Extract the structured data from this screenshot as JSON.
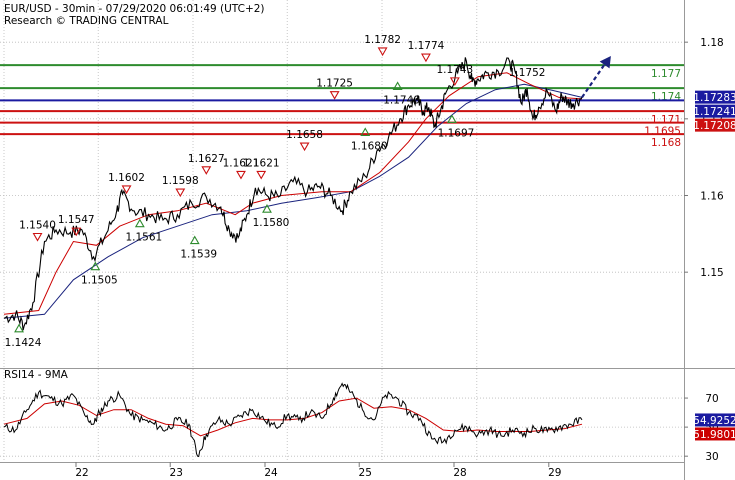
{
  "header": {
    "line1": "EUR/USD - 30min - 07/29/2020 06:01:49 (UTC+2)",
    "line2": "Research © TRADING CENTRAL"
  },
  "colors": {
    "price": "#000000",
    "ma_fast": "#cc0000",
    "ma_slow": "#1a237e",
    "resistance_green": "#2e8b2e",
    "pivot_blue": "#1a1aa0",
    "support_red": "#cc1111",
    "arrow": "#1a237e",
    "rsi": "#000000",
    "rsi_ma": "#cc0000"
  },
  "chart_data": [
    {
      "type": "line",
      "title": "EUR/USD - 30min - 07/29/2020 06:01:49 (UTC+2)",
      "ylim": [
        1.1375,
        1.1855
      ],
      "y_ticks": [
        "1.18",
        "1.17",
        "1.16",
        "1.15"
      ],
      "y_tick_values": [
        1.18,
        1.17,
        1.16,
        1.15
      ],
      "x_ticks": [
        "22",
        "23",
        "24",
        "25",
        "28",
        "29"
      ],
      "x_tick_positions": [
        0.0,
        0.163,
        0.327,
        0.49,
        0.654,
        0.818
      ],
      "x_end": 0.87,
      "grid": true,
      "price_path": [
        [
          0.0,
          1.144
        ],
        [
          0.02,
          1.1445
        ],
        [
          0.035,
          1.143
        ],
        [
          0.05,
          1.146
        ],
        [
          0.07,
          1.154
        ],
        [
          0.09,
          1.1555
        ],
        [
          0.115,
          1.1552
        ],
        [
          0.135,
          1.1555
        ],
        [
          0.155,
          1.152
        ],
        [
          0.175,
          1.1547
        ],
        [
          0.195,
          1.158
        ],
        [
          0.205,
          1.1602
        ],
        [
          0.225,
          1.158
        ],
        [
          0.25,
          1.1575
        ],
        [
          0.275,
          1.1568
        ],
        [
          0.3,
          1.1575
        ],
        [
          0.325,
          1.159
        ],
        [
          0.35,
          1.1598
        ],
        [
          0.375,
          1.1585
        ],
        [
          0.39,
          1.1555
        ],
        [
          0.405,
          1.1545
        ],
        [
          0.42,
          1.1575
        ],
        [
          0.435,
          1.161
        ],
        [
          0.455,
          1.16
        ],
        [
          0.475,
          1.1598
        ],
        [
          0.5,
          1.1618
        ],
        [
          0.525,
          1.1605
        ],
        [
          0.545,
          1.1612
        ],
        [
          0.565,
          1.16
        ],
        [
          0.585,
          1.158
        ],
        [
          0.6,
          1.1605
        ],
        [
          0.625,
          1.1625
        ],
        [
          0.645,
          1.1658
        ],
        [
          0.665,
          1.1675
        ],
        [
          0.685,
          1.17
        ],
        [
          0.7,
          1.1718
        ],
        [
          0.715,
          1.1725
        ],
        [
          0.725,
          1.171
        ],
        [
          0.735,
          1.1715
        ],
        [
          0.745,
          1.169
        ],
        [
          0.755,
          1.171
        ],
        [
          0.765,
          1.1735
        ],
        [
          0.785,
          1.176
        ],
        [
          0.8,
          1.1775
        ],
        [
          0.81,
          1.1748
        ],
        [
          0.82,
          1.1752
        ],
        [
          0.835,
          1.176
        ],
        [
          0.855,
          1.1762
        ],
        [
          0.875,
          1.1774
        ],
        [
          0.885,
          1.176
        ],
        [
          0.895,
          1.172
        ],
        [
          0.905,
          1.174
        ],
        [
          0.915,
          1.17
        ],
        [
          0.925,
          1.1715
        ],
        [
          0.94,
          1.1736
        ],
        [
          0.955,
          1.171
        ],
        [
          0.965,
          1.173
        ],
        [
          0.975,
          1.1722
        ],
        [
          0.985,
          1.172
        ],
        [
          1.0,
          1.1728
        ]
      ],
      "ma_fast_path": [
        [
          0.0,
          1.1445
        ],
        [
          0.06,
          1.145
        ],
        [
          0.09,
          1.15
        ],
        [
          0.12,
          1.154
        ],
        [
          0.16,
          1.1535
        ],
        [
          0.2,
          1.156
        ],
        [
          0.25,
          1.1575
        ],
        [
          0.3,
          1.158
        ],
        [
          0.35,
          1.159
        ],
        [
          0.4,
          1.1575
        ],
        [
          0.43,
          1.159
        ],
        [
          0.48,
          1.16
        ],
        [
          0.55,
          1.1605
        ],
        [
          0.6,
          1.1605
        ],
        [
          0.65,
          1.163
        ],
        [
          0.7,
          1.167
        ],
        [
          0.73,
          1.17
        ],
        [
          0.77,
          1.173
        ],
        [
          0.82,
          1.1755
        ],
        [
          0.87,
          1.176
        ],
        [
          0.91,
          1.1745
        ],
        [
          0.96,
          1.1728
        ],
        [
          1.0,
          1.1726
        ]
      ],
      "ma_slow_path": [
        [
          0.0,
          1.144
        ],
        [
          0.07,
          1.1445
        ],
        [
          0.12,
          1.149
        ],
        [
          0.18,
          1.152
        ],
        [
          0.24,
          1.1545
        ],
        [
          0.3,
          1.156
        ],
        [
          0.36,
          1.1575
        ],
        [
          0.42,
          1.158
        ],
        [
          0.48,
          1.159
        ],
        [
          0.54,
          1.1597
        ],
        [
          0.6,
          1.1605
        ],
        [
          0.65,
          1.1625
        ],
        [
          0.7,
          1.165
        ],
        [
          0.75,
          1.169
        ],
        [
          0.8,
          1.172
        ],
        [
          0.85,
          1.1738
        ],
        [
          0.9,
          1.1745
        ],
        [
          0.95,
          1.1737
        ],
        [
          1.0,
          1.1728
        ]
      ],
      "forecast_arrow": {
        "from": [
          1.0,
          1.1728
        ],
        "to": [
          1.05,
          1.1782
        ]
      },
      "levels": [
        {
          "value": 1.177,
          "label": "1.177",
          "kind": "resistance"
        },
        {
          "value": 1.174,
          "label": "1.174",
          "kind": "resistance"
        },
        {
          "value": 1.171,
          "label": "1.171",
          "kind": "support"
        },
        {
          "value": 1.1695,
          "label": "1.1695",
          "kind": "support"
        },
        {
          "value": 1.168,
          "label": "1.168",
          "kind": "support"
        },
        {
          "value": 1.1724,
          "label": "",
          "kind": "pivot"
        }
      ],
      "price_labels": [
        {
          "value": 1.17283,
          "label": "1.17283",
          "kind": "pivot"
        },
        {
          "value": 1.17241,
          "label": "1.17241",
          "kind": "pivot"
        },
        {
          "value": 1.17208,
          "label": "1.17208",
          "kind": "support"
        }
      ],
      "annotations": [
        {
          "x": 0.026,
          "y": 1.1434,
          "label": "1.1424",
          "kind": "low"
        },
        {
          "x": 0.058,
          "y": 1.154,
          "label": "1.1540",
          "kind": "high"
        },
        {
          "x": 0.125,
          "y": 1.1547,
          "label": "1.1547",
          "kind": "high"
        },
        {
          "x": 0.158,
          "y": 1.1515,
          "label": "1.1505",
          "kind": "low"
        },
        {
          "x": 0.212,
          "y": 1.1602,
          "label": "1.1602",
          "kind": "high"
        },
        {
          "x": 0.235,
          "y": 1.1571,
          "label": "1.1561",
          "kind": "low"
        },
        {
          "x": 0.305,
          "y": 1.1598,
          "label": "1.1598",
          "kind": "high"
        },
        {
          "x": 0.33,
          "y": 1.1549,
          "label": "1.1539",
          "kind": "low"
        },
        {
          "x": 0.35,
          "y": 1.1627,
          "label": "1.1627",
          "kind": "high"
        },
        {
          "x": 0.41,
          "y": 1.1621,
          "label": "1.1621",
          "kind": "high"
        },
        {
          "x": 0.445,
          "y": 1.1621,
          "label": "1.1621",
          "kind": "high"
        },
        {
          "x": 0.455,
          "y": 1.159,
          "label": "1.1580",
          "kind": "low"
        },
        {
          "x": 0.52,
          "y": 1.1658,
          "label": "1.1658",
          "kind": "high"
        },
        {
          "x": 0.572,
          "y": 1.1725,
          "label": "1.1725",
          "kind": "high"
        },
        {
          "x": 0.625,
          "y": 1.169,
          "label": "1.1680",
          "kind": "low"
        },
        {
          "x": 0.655,
          "y": 1.1782,
          "label": "1.1782",
          "kind": "high"
        },
        {
          "x": 0.681,
          "y": 1.175,
          "label": "1.1740",
          "kind": "low"
        },
        {
          "x": 0.73,
          "y": 1.1774,
          "label": "1.1774",
          "kind": "high"
        },
        {
          "x": 0.775,
          "y": 1.1707,
          "label": "1.1697",
          "kind": "low"
        },
        {
          "x": 0.78,
          "y": 1.1743,
          "label": "1.1743",
          "kind": "high"
        },
        {
          "x": 0.905,
          "y": 1.1748,
          "label": "1.1752",
          "kind": "target"
        }
      ]
    },
    {
      "type": "line",
      "title": "RSI14 - 9MA",
      "ylim": [
        26,
        90
      ],
      "y_ticks": [
        "70",
        "50",
        "30"
      ],
      "y_tick_values": [
        70,
        50,
        30
      ],
      "grid": true,
      "rsi_path": [
        [
          0.0,
          50
        ],
        [
          0.02,
          48
        ],
        [
          0.04,
          62
        ],
        [
          0.06,
          74
        ],
        [
          0.08,
          70
        ],
        [
          0.1,
          66
        ],
        [
          0.12,
          72
        ],
        [
          0.14,
          58
        ],
        [
          0.155,
          52
        ],
        [
          0.165,
          60
        ],
        [
          0.18,
          68
        ],
        [
          0.2,
          72
        ],
        [
          0.22,
          58
        ],
        [
          0.24,
          55
        ],
        [
          0.26,
          52
        ],
        [
          0.28,
          48
        ],
        [
          0.3,
          55
        ],
        [
          0.32,
          52
        ],
        [
          0.335,
          30
        ],
        [
          0.35,
          45
        ],
        [
          0.37,
          55
        ],
        [
          0.39,
          52
        ],
        [
          0.41,
          58
        ],
        [
          0.43,
          62
        ],
        [
          0.45,
          55
        ],
        [
          0.47,
          50
        ],
        [
          0.49,
          58
        ],
        [
          0.51,
          55
        ],
        [
          0.53,
          60
        ],
        [
          0.55,
          56
        ],
        [
          0.57,
          70
        ],
        [
          0.585,
          80
        ],
        [
          0.6,
          74
        ],
        [
          0.62,
          62
        ],
        [
          0.64,
          55
        ],
        [
          0.66,
          72
        ],
        [
          0.68,
          70
        ],
        [
          0.7,
          60
        ],
        [
          0.72,
          56
        ],
        [
          0.74,
          42
        ],
        [
          0.76,
          40
        ],
        [
          0.78,
          48
        ],
        [
          0.8,
          50
        ],
        [
          0.82,
          45
        ],
        [
          0.84,
          48
        ],
        [
          0.86,
          44
        ],
        [
          0.88,
          48
        ],
        [
          0.9,
          46
        ],
        [
          0.92,
          49
        ],
        [
          0.94,
          47
        ],
        [
          0.96,
          50
        ],
        [
          0.98,
          52
        ],
        [
          1.0,
          55
        ]
      ],
      "rsi_ma_path": [
        [
          0.0,
          52
        ],
        [
          0.04,
          56
        ],
        [
          0.07,
          66
        ],
        [
          0.1,
          68
        ],
        [
          0.13,
          65
        ],
        [
          0.16,
          58
        ],
        [
          0.19,
          62
        ],
        [
          0.22,
          62
        ],
        [
          0.25,
          56
        ],
        [
          0.28,
          52
        ],
        [
          0.31,
          51
        ],
        [
          0.34,
          44
        ],
        [
          0.37,
          48
        ],
        [
          0.4,
          53
        ],
        [
          0.43,
          56
        ],
        [
          0.46,
          55
        ],
        [
          0.49,
          55
        ],
        [
          0.52,
          56
        ],
        [
          0.55,
          60
        ],
        [
          0.58,
          68
        ],
        [
          0.61,
          70
        ],
        [
          0.64,
          63
        ],
        [
          0.67,
          64
        ],
        [
          0.7,
          62
        ],
        [
          0.73,
          56
        ],
        [
          0.76,
          48
        ],
        [
          0.79,
          47
        ],
        [
          0.82,
          48
        ],
        [
          0.85,
          47
        ],
        [
          0.88,
          47
        ],
        [
          0.91,
          47
        ],
        [
          0.94,
          48
        ],
        [
          0.97,
          49
        ],
        [
          1.0,
          52
        ]
      ],
      "price_labels": [
        {
          "value": 54.9252,
          "label": "54.9252",
          "kind": "rsi"
        },
        {
          "value": 51.9801,
          "label": "51.9801",
          "kind": "rsi_ma"
        }
      ]
    }
  ]
}
